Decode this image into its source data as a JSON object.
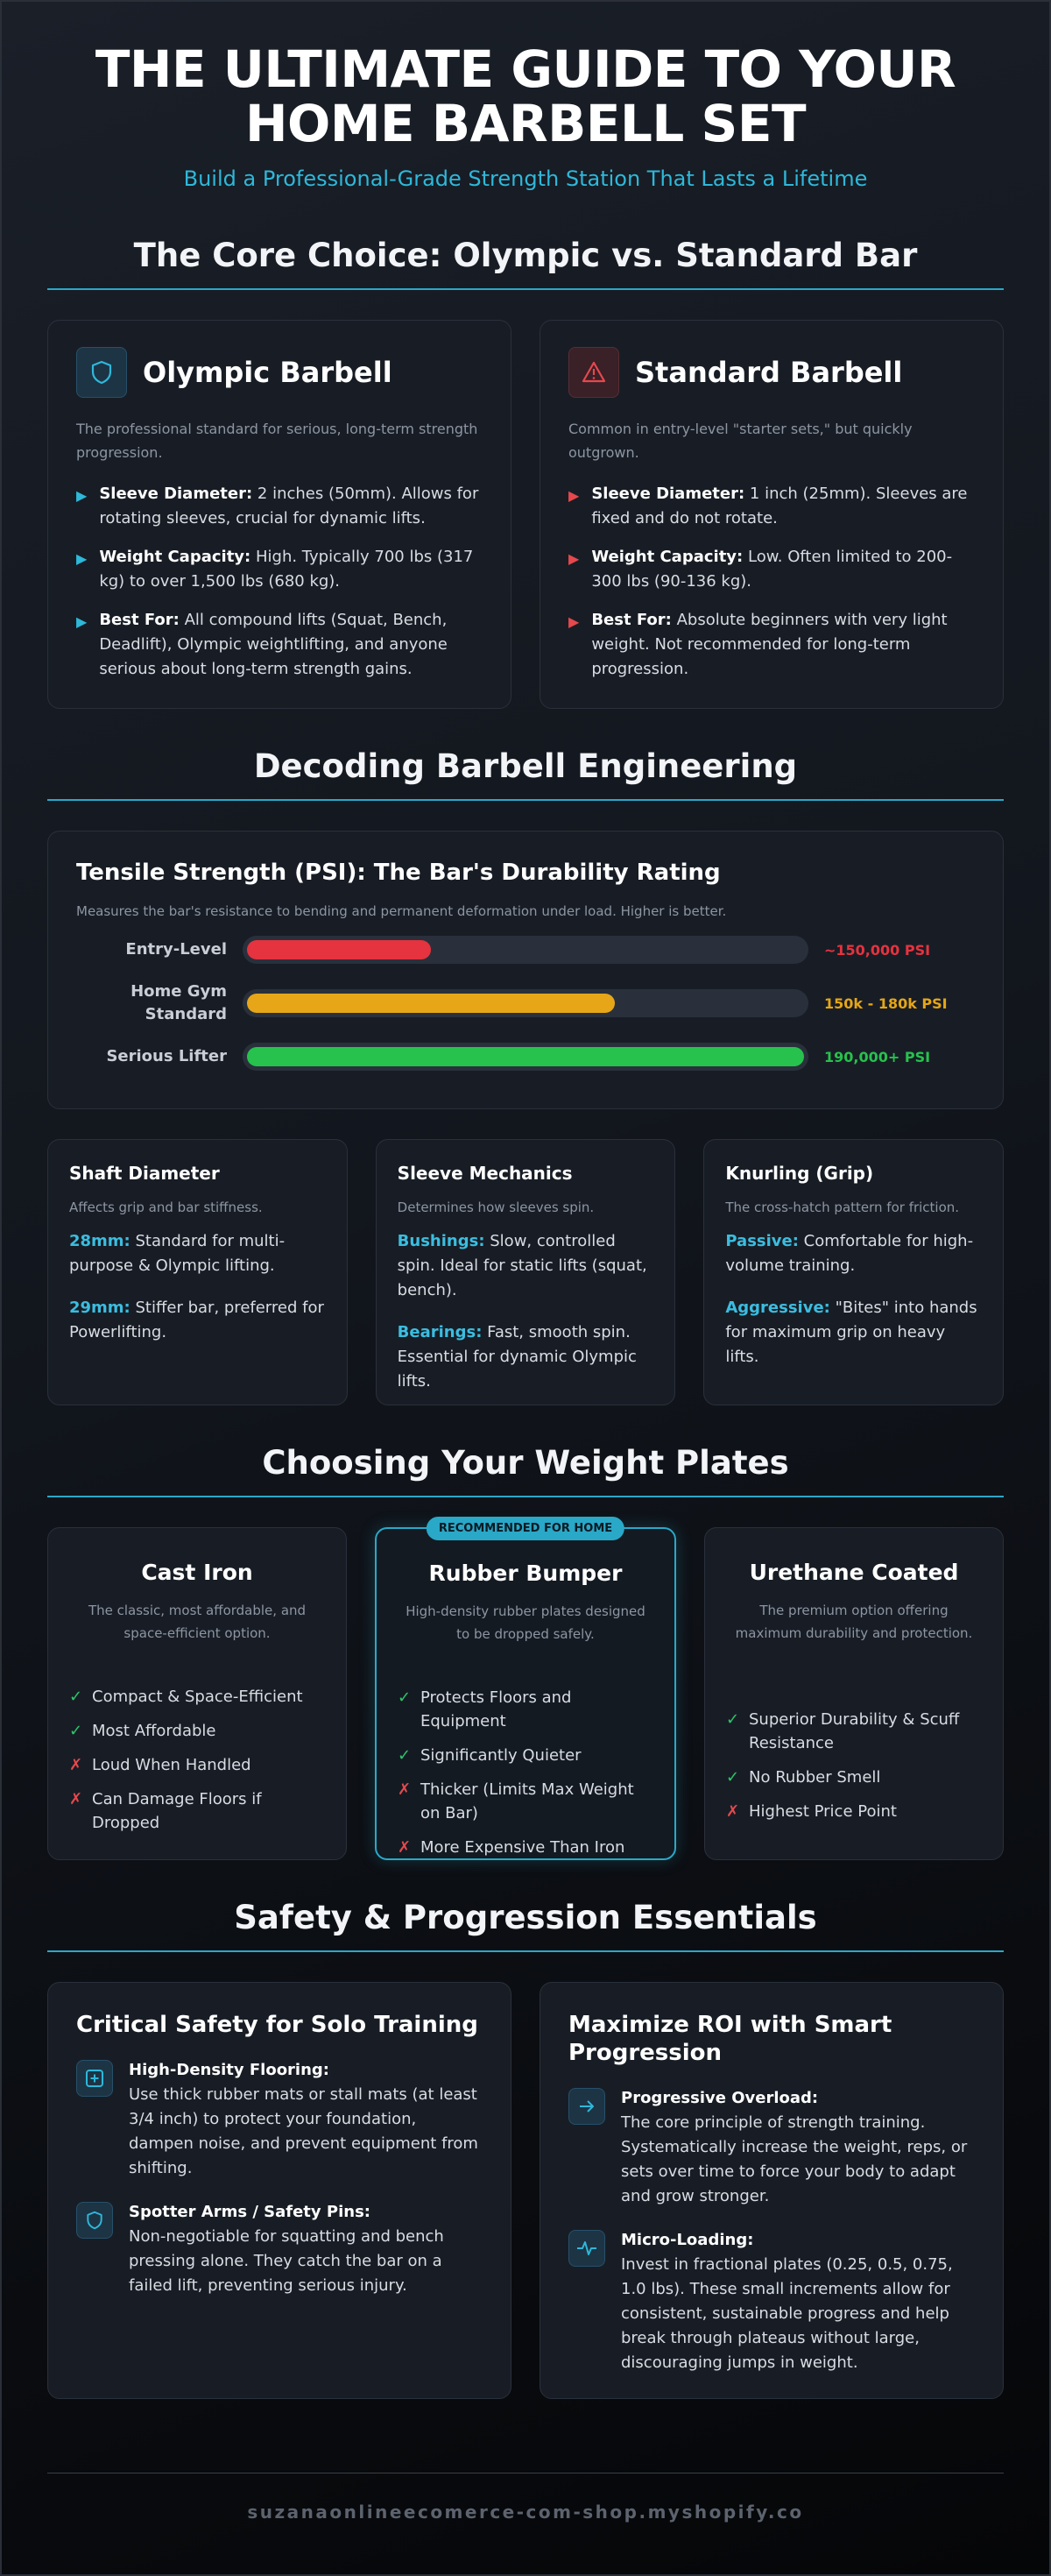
{
  "hero": {
    "title_line1": "THE ULTIMATE GUIDE TO YOUR",
    "title_line2": "HOME BARBELL SET",
    "subtitle": "Build a Professional-Grade Strength Station That Lasts a Lifetime"
  },
  "core_choice": {
    "heading": "The Core Choice: Olympic vs. Standard Bar",
    "olympic": {
      "icon": "shield-icon",
      "title": "Olympic Barbell",
      "description": "The professional standard for serious, long-term strength progression.",
      "points": [
        {
          "label": "Sleeve Diameter:",
          "text": "2 inches (50mm). Allows for rotating sleeves, crucial for dynamic lifts."
        },
        {
          "label": "Weight Capacity:",
          "text": "High. Typically 700 lbs (317 kg) to over 1,500 lbs (680 kg)."
        },
        {
          "label": "Best For:",
          "text": "All compound lifts (Squat, Bench, Deadlift), Olympic weightlifting, and anyone serious about long-term strength gains."
        }
      ]
    },
    "standard": {
      "icon": "warning-triangle-icon",
      "title": "Standard Barbell",
      "description": "Common in entry-level \"starter sets,\" but quickly outgrown.",
      "points": [
        {
          "label": "Sleeve Diameter:",
          "text": "1 inch (25mm). Sleeves are fixed and do not rotate."
        },
        {
          "label": "Weight Capacity:",
          "text": "Low. Often limited to 200-300 lbs (90-136 kg)."
        },
        {
          "label": "Best For:",
          "text": "Absolute beginners with very light weight. Not recommended for long-term progression."
        }
      ]
    }
  },
  "engineering": {
    "heading": "Decoding Barbell Engineering",
    "tensile": {
      "title": "Tensile Strength (PSI): The Bar's Durability Rating",
      "description": "Measures the bar's resistance to bending and permanent deformation under load. Higher is better.",
      "rows": [
        {
          "label": "Entry-Level",
          "value_label": "~150,000 PSI",
          "fill_fraction": 0.33,
          "color": "#e5333f"
        },
        {
          "label_line1": "Home Gym",
          "label_line2": "Standard",
          "value_label": "150k - 180k PSI",
          "fill_fraction": 0.66,
          "color": "#e6a617"
        },
        {
          "label": "Serious Lifter",
          "value_label": "190,000+ PSI",
          "fill_fraction": 1.0,
          "color": "#26c24d"
        }
      ]
    },
    "specs": [
      {
        "title": "Shaft Diameter",
        "description": "Affects grip and bar stiffness.",
        "items": [
          {
            "label": "28mm:",
            "text": "Standard for multi-purpose & Olympic lifting."
          },
          {
            "label": "29mm:",
            "text": "Stiffer bar, preferred for Powerlifting."
          }
        ]
      },
      {
        "title": "Sleeve Mechanics",
        "description": "Determines how sleeves spin.",
        "items": [
          {
            "label": "Bushings:",
            "text": "Slow, controlled spin. Ideal for static lifts (squat, bench)."
          },
          {
            "label": "Bearings:",
            "text": "Fast, smooth spin. Essential for dynamic Olympic lifts."
          }
        ]
      },
      {
        "title": "Knurling (Grip)",
        "description": "The cross-hatch pattern for friction.",
        "items": [
          {
            "label": "Passive:",
            "text": "Comfortable for high-volume training."
          },
          {
            "label": "Aggressive:",
            "text": "\"Bites\" into hands for maximum grip on heavy lifts."
          }
        ]
      }
    ]
  },
  "plates": {
    "heading": "Choosing Your Weight Plates",
    "badge": "RECOMMENDED FOR HOME",
    "cards": [
      {
        "title": "Cast Iron",
        "description": "The classic, most affordable, and space-efficient option.",
        "items": [
          {
            "type": "pro",
            "text": "Compact & Space-Efficient"
          },
          {
            "type": "pro",
            "text": "Most Affordable"
          },
          {
            "type": "con",
            "text": "Loud When Handled"
          },
          {
            "type": "con",
            "text": "Can Damage Floors if Dropped"
          }
        ]
      },
      {
        "title": "Rubber Bumper",
        "description": "High-density rubber plates designed to be dropped safely.",
        "items": [
          {
            "type": "pro",
            "text": "Protects Floors and Equipment"
          },
          {
            "type": "pro",
            "text": "Significantly Quieter"
          },
          {
            "type": "con",
            "text": "Thicker (Limits Max Weight on Bar)"
          },
          {
            "type": "con",
            "text": "More Expensive Than Iron"
          }
        ]
      },
      {
        "title": "Urethane Coated",
        "description": "The premium option offering maximum durability and protection.",
        "items": [
          {
            "type": "pro",
            "text": "Superior Durability & Scuff Resistance"
          },
          {
            "type": "pro",
            "text": "No Rubber Smell"
          },
          {
            "type": "con",
            "text": "Highest Price Point"
          }
        ]
      }
    ],
    "check_glyph": "✓",
    "cross_glyph": "✗"
  },
  "safety": {
    "heading": "Safety & Progression Essentials",
    "solo": {
      "title": "Critical Safety for Solo Training",
      "items": [
        {
          "icon": "plus-square-icon",
          "label": "High-Density Flooring:",
          "text": "Use thick rubber mats or stall mats (at least 3/4 inch) to protect your foundation, dampen noise, and prevent equipment from shifting."
        },
        {
          "icon": "shield-icon",
          "label": "Spotter Arms / Safety Pins:",
          "text": "Non-negotiable for squatting and bench pressing alone. They catch the bar on a failed lift, preventing serious injury."
        }
      ]
    },
    "roi": {
      "title_line1": "Maximize ROI with Smart",
      "title_line2": "Progression",
      "items": [
        {
          "icon": "arrow-right-icon",
          "label": "Progressive Overload:",
          "text": "The core principle of strength training. Systematically increase the weight, reps, or sets over time to force your body to adapt and grow stronger."
        },
        {
          "icon": "pulse-icon",
          "label": "Micro-Loading:",
          "text": "Invest in fractional plates (0.25, 0.5, 0.75, 1.0 lbs). These small increments allow for consistent, sustainable progress and help break through plateaus without large, discouraging jumps in weight."
        }
      ]
    }
  },
  "footer": {
    "url": "suzanaonlineecomerce-com-shop.myshopify.co"
  }
}
